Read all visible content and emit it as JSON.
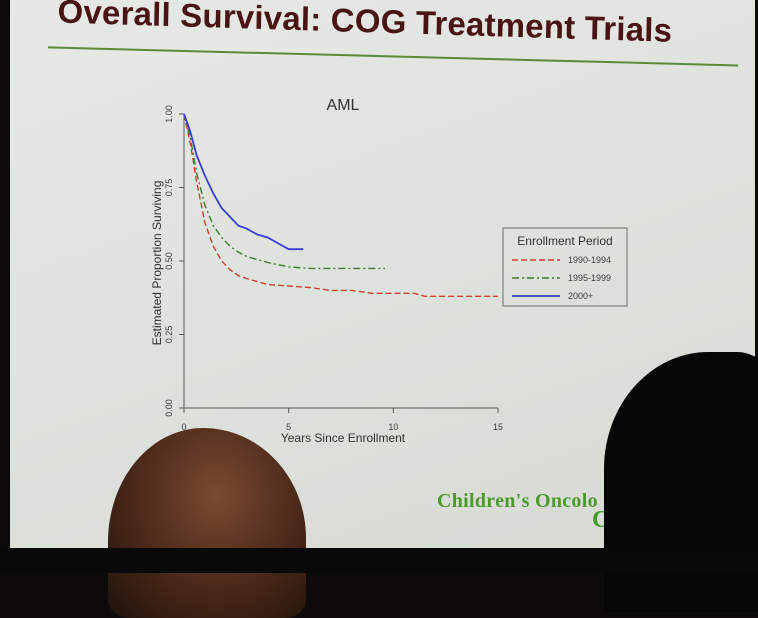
{
  "slide": {
    "title": "Overall Survival: COG Treatment Trials",
    "footer_brand": "Children's Oncolo",
    "footer_mark": "C"
  },
  "colors": {
    "title": "#4a1414",
    "rule": "#5a8a3a",
    "brand": "#4b9b2c",
    "series_1990_1994": "#d04030",
    "series_1995_1999": "#3c7c2c",
    "series_2000": "#3b3bd6"
  },
  "chart_data": {
    "type": "line",
    "title": "AML",
    "xlabel": "Years Since Enrollment",
    "ylabel": "Estimated Proportion Surviving",
    "xlim": [
      0,
      15
    ],
    "ylim": [
      0,
      1
    ],
    "x_ticks": [
      "0",
      "5",
      "10",
      "15"
    ],
    "y_ticks": [
      "0.00",
      "0.25",
      "0.50",
      "0.75",
      "1.00"
    ],
    "legend_title": "Enrollment Period",
    "legend_position": "right",
    "series": [
      {
        "name": "1990-1994",
        "style": "dashed",
        "color": "#d04030",
        "x": [
          0,
          0.3,
          0.6,
          1.0,
          1.4,
          1.8,
          2.2,
          2.6,
          3.0,
          3.5,
          4.0,
          5.0,
          6.0,
          7.0,
          8.0,
          9.0,
          10.0,
          11.0,
          11.5,
          12.0,
          13.0,
          14.0,
          15.0
        ],
        "y": [
          1.0,
          0.9,
          0.77,
          0.63,
          0.55,
          0.5,
          0.47,
          0.45,
          0.44,
          0.43,
          0.42,
          0.415,
          0.41,
          0.4,
          0.4,
          0.39,
          0.39,
          0.39,
          0.38,
          0.38,
          0.38,
          0.38,
          0.38
        ]
      },
      {
        "name": "1995-1999",
        "style": "dashdot",
        "color": "#3c7c2c",
        "x": [
          0,
          0.3,
          0.6,
          1.0,
          1.4,
          1.8,
          2.2,
          2.6,
          3.0,
          3.5,
          4.0,
          5.0,
          6.0,
          7.0,
          8.0,
          9.0,
          9.6
        ],
        "y": [
          1.0,
          0.92,
          0.8,
          0.69,
          0.62,
          0.58,
          0.55,
          0.53,
          0.515,
          0.505,
          0.495,
          0.48,
          0.475,
          0.475,
          0.475,
          0.475,
          0.475
        ]
      },
      {
        "name": "2000+",
        "style": "solid",
        "color": "#3b3bd6",
        "x": [
          0,
          0.3,
          0.6,
          1.0,
          1.4,
          1.8,
          2.2,
          2.6,
          3.0,
          3.5,
          4.0,
          4.5,
          5.0,
          5.7
        ],
        "y": [
          1.0,
          0.94,
          0.86,
          0.79,
          0.73,
          0.68,
          0.65,
          0.62,
          0.61,
          0.59,
          0.58,
          0.56,
          0.54,
          0.54
        ]
      }
    ]
  }
}
